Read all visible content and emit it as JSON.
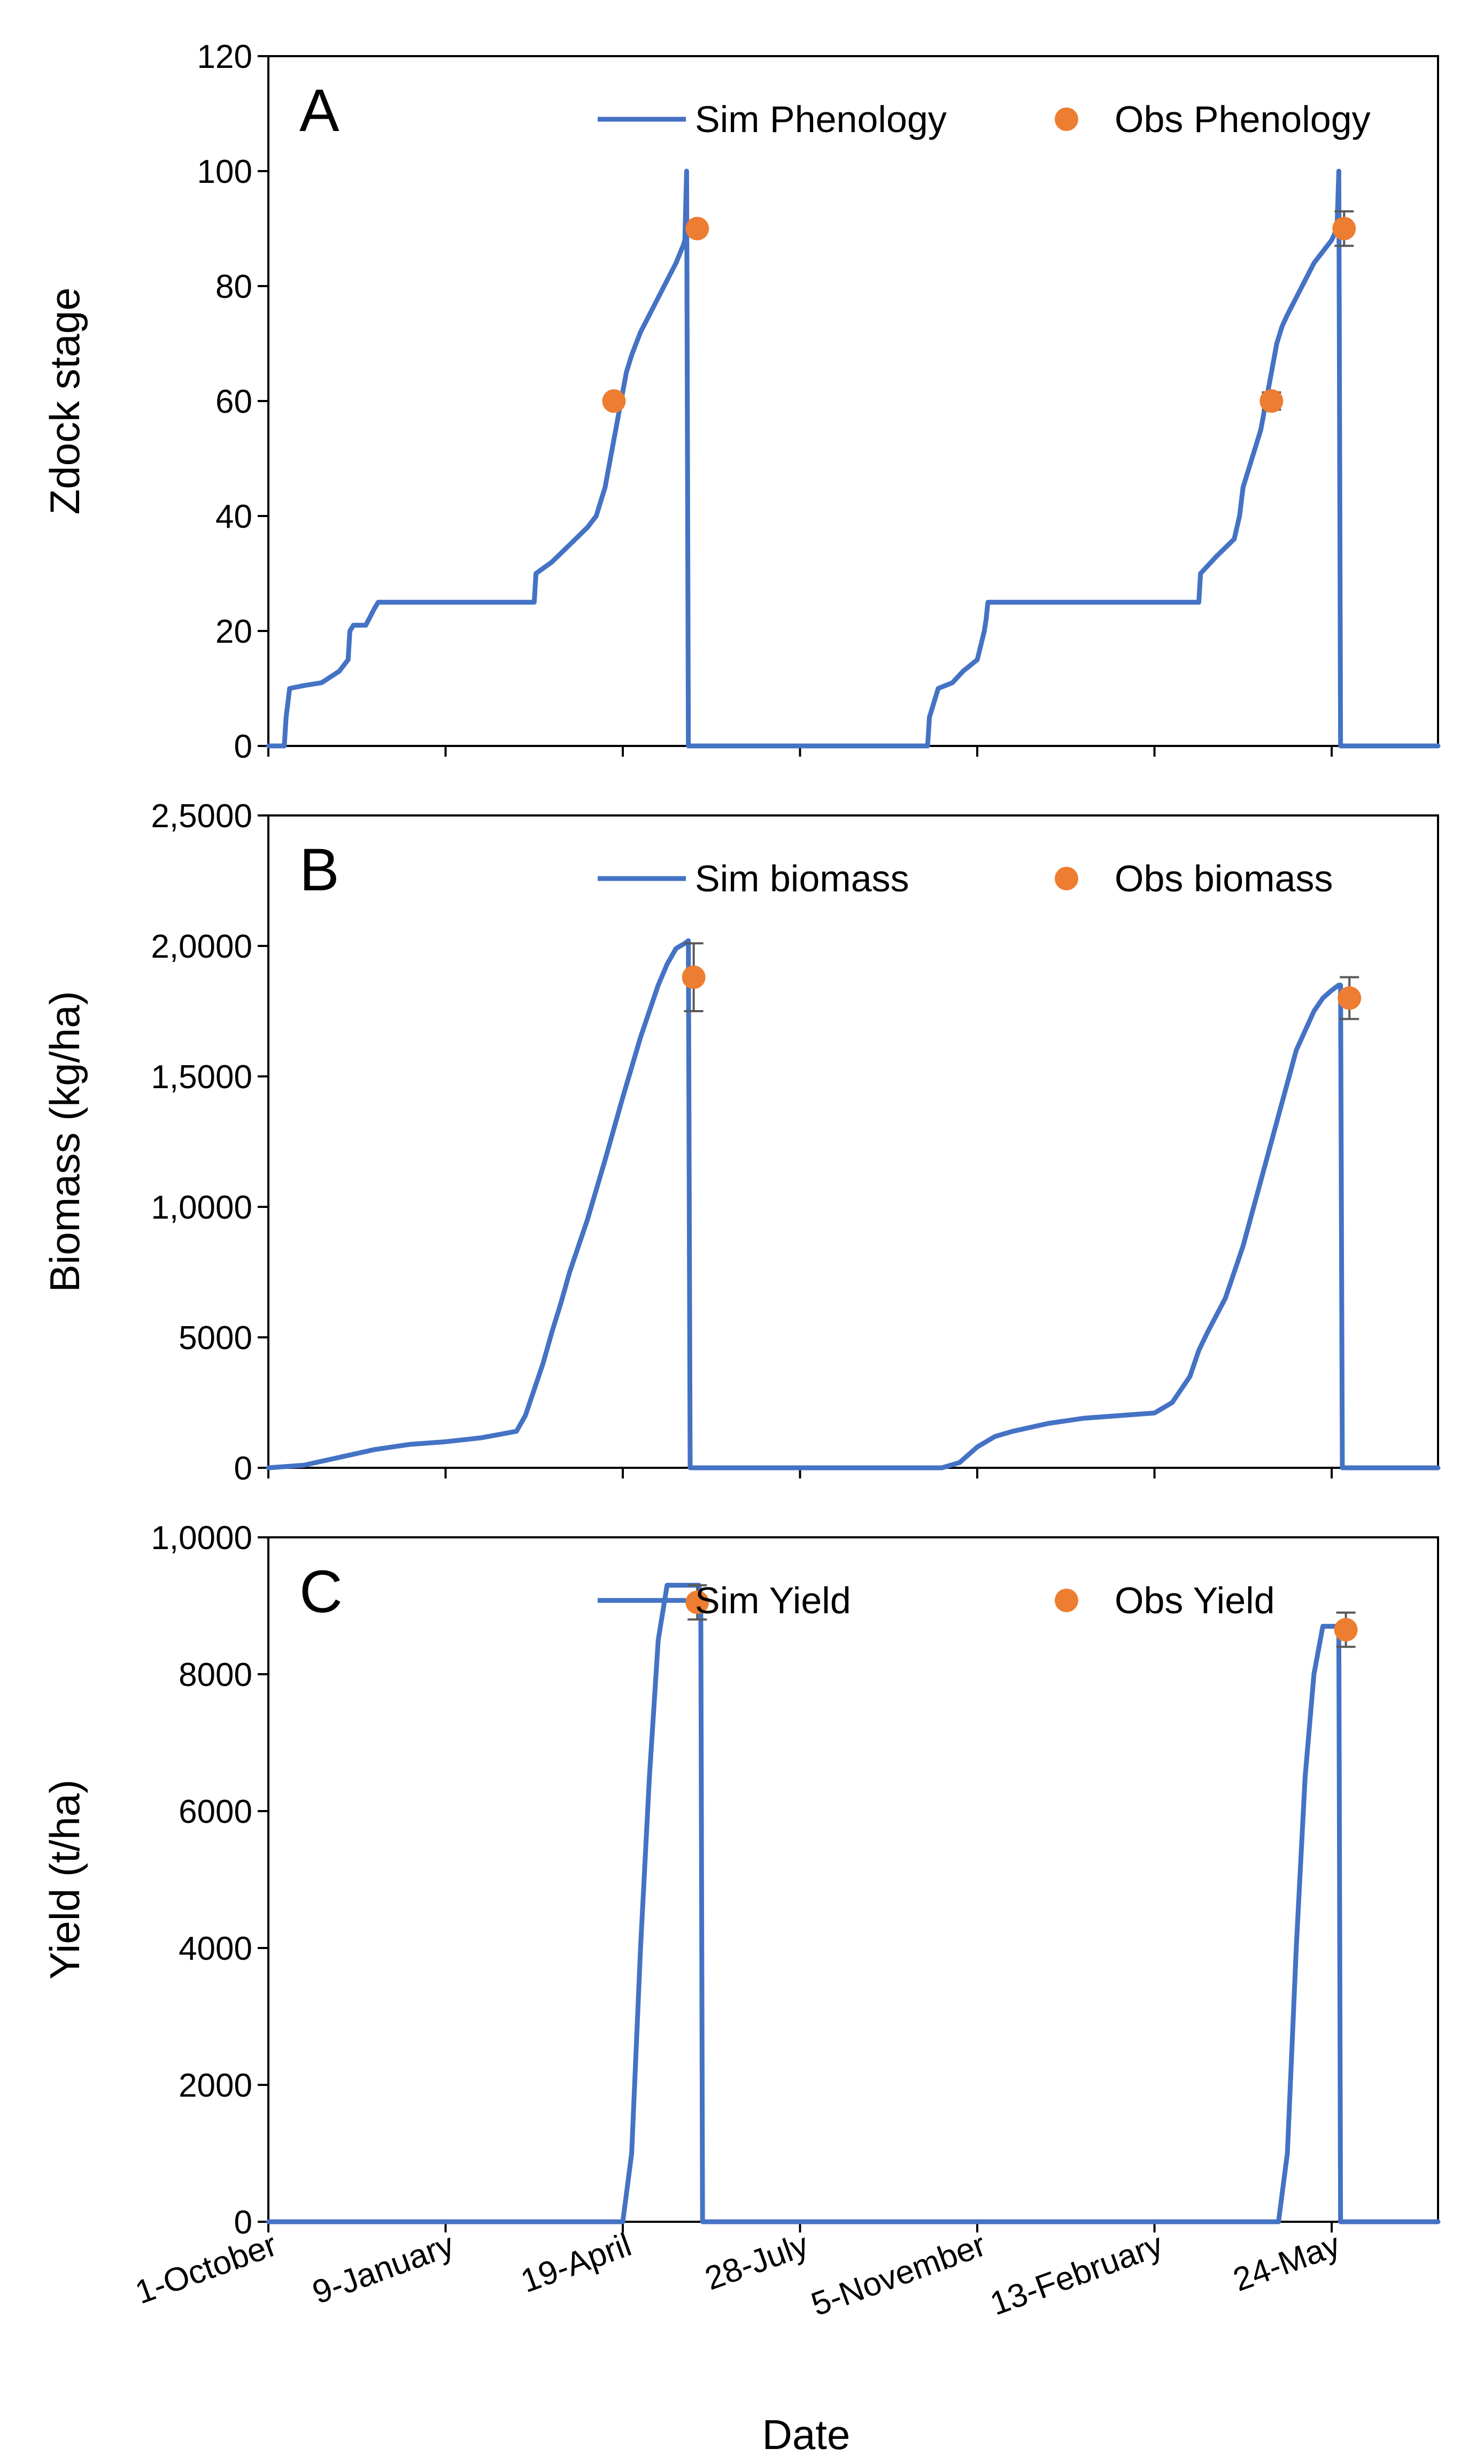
{
  "figure": {
    "xlabel": "Date"
  },
  "colors": {
    "sim": "#4472C4",
    "obs": "#ED7D31",
    "frame": "#000000",
    "error": "#595959"
  },
  "chart_data": [
    {
      "panel": "A",
      "type": "line",
      "ylabel": "Zdock stage",
      "ylim": [
        0,
        120
      ],
      "yticks": [
        0,
        20,
        40,
        60,
        80,
        100,
        120
      ],
      "ytick_labels": [
        "0",
        "20",
        "40",
        "60",
        "80",
        "100",
        "120"
      ],
      "xlim": [
        0,
        660
      ],
      "xtick_values": [
        0,
        100,
        200,
        300,
        400,
        500,
        600
      ],
      "xtick_labels": [
        "1-October",
        "9-January",
        "19-April",
        "28-July",
        "5-November",
        "13-February",
        "24-May"
      ],
      "legend": {
        "sim": "Sim Phenology",
        "obs": "Obs Phenology",
        "position": "top-right"
      },
      "series": [
        {
          "name": "Sim Phenology",
          "kind": "line",
          "x": [
            0,
            9,
            10,
            12,
            20,
            30,
            40,
            45,
            46,
            48,
            55,
            60,
            62,
            150,
            151,
            160,
            170,
            180,
            185,
            190,
            193,
            196,
            199,
            202,
            205,
            210,
            215,
            220,
            225,
            230,
            234,
            235,
            236,
            237,
            372,
            373,
            378,
            382,
            386,
            392,
            400,
            404,
            405,
            406,
            408,
            412,
            420,
            430,
            440,
            480,
            500,
            525,
            526,
            535,
            545,
            548,
            550,
            555,
            560,
            563,
            566,
            569,
            572,
            575,
            580,
            585,
            590,
            595,
            600,
            603,
            604,
            605,
            606,
            608,
            660
          ],
          "y": [
            0,
            0,
            5,
            10,
            10.5,
            11,
            13,
            15,
            20,
            21,
            21,
            24,
            25,
            25,
            30,
            32,
            35,
            38,
            40,
            45,
            50,
            55,
            60,
            65,
            68,
            72,
            75,
            78,
            81,
            84,
            87,
            88,
            100,
            0,
            0,
            5,
            10,
            10.5,
            11,
            13,
            15,
            20,
            22,
            25,
            25,
            25,
            25,
            25,
            25,
            25,
            25,
            25,
            30,
            33,
            36,
            40,
            45,
            50,
            55,
            60,
            65,
            70,
            73,
            75,
            78,
            81,
            84,
            86,
            88,
            90,
            100,
            0,
            0,
            0,
            0
          ]
        },
        {
          "name": "Obs Phenology",
          "kind": "points",
          "x": [
            195,
            242,
            566,
            607
          ],
          "y": [
            60,
            90,
            60,
            90
          ],
          "err": [
            0,
            0,
            1.5,
            3
          ]
        }
      ]
    },
    {
      "panel": "B",
      "type": "line",
      "ylabel": "Biomass (kg/ha)",
      "ylim": [
        0,
        25000
      ],
      "yticks": [
        0,
        5000,
        10000,
        15000,
        20000,
        25000
      ],
      "ytick_labels": [
        "0",
        "5000",
        "1,0000",
        "1,5000",
        "2,0000",
        "2,5000"
      ],
      "xlim": [
        0,
        660
      ],
      "xtick_values": [
        0,
        100,
        200,
        300,
        400,
        500,
        600
      ],
      "xtick_labels": [
        "1-October",
        "9-January",
        "19-April",
        "28-July",
        "5-November",
        "13-February",
        "24-May"
      ],
      "legend": {
        "sim": "Sim biomass",
        "obs": "Obs biomass",
        "position": "top-right"
      },
      "series": [
        {
          "name": "Sim biomass",
          "kind": "line",
          "x": [
            0,
            20,
            40,
            60,
            80,
            100,
            120,
            140,
            145,
            150,
            155,
            160,
            165,
            170,
            180,
            190,
            200,
            210,
            220,
            225,
            230,
            235,
            237,
            238,
            380,
            390,
            400,
            410,
            420,
            440,
            460,
            480,
            500,
            510,
            520,
            525,
            530,
            540,
            550,
            560,
            570,
            580,
            590,
            595,
            600,
            604,
            605,
            606,
            660
          ],
          "y": [
            0,
            100,
            400,
            700,
            900,
            1000,
            1150,
            1400,
            2000,
            3000,
            4000,
            5200,
            6300,
            7500,
            9500,
            11800,
            14200,
            16500,
            18500,
            19300,
            19900,
            20100,
            20200,
            0,
            0,
            200,
            800,
            1200,
            1400,
            1700,
            1900,
            2000,
            2100,
            2500,
            3500,
            4500,
            5200,
            6500,
            8500,
            11000,
            13500,
            16000,
            17500,
            18000,
            18300,
            18500,
            18500,
            0,
            0
          ]
        },
        {
          "name": "Obs biomass",
          "kind": "points",
          "x": [
            240,
            610
          ],
          "y": [
            18800,
            18000
          ],
          "err": [
            1300,
            800
          ]
        }
      ]
    },
    {
      "panel": "C",
      "type": "line",
      "ylabel": "Yield (t/ha)",
      "ylim": [
        0,
        10000
      ],
      "yticks": [
        0,
        2000,
        4000,
        6000,
        8000,
        10000
      ],
      "ytick_labels": [
        "0",
        "2000",
        "4000",
        "6000",
        "8000",
        "1,0000"
      ],
      "xlim": [
        0,
        660
      ],
      "xtick_values": [
        0,
        100,
        200,
        300,
        400,
        500,
        600
      ],
      "xtick_labels": [
        "1-October",
        "9-January",
        "19-April",
        "28-July",
        "5-November",
        "13-February",
        "24-May"
      ],
      "legend": {
        "sim": "Sim Yield",
        "obs": "Obs Yield",
        "position": "top-right"
      },
      "series": [
        {
          "name": "Sim Yield",
          "kind": "line",
          "x": [
            0,
            200,
            205,
            210,
            215,
            220,
            225,
            228,
            232,
            240,
            243,
            244,
            245,
            570,
            575,
            580,
            585,
            590,
            595,
            600,
            603,
            604,
            605,
            660
          ],
          "y": [
            0,
            0,
            1000,
            4000,
            6500,
            8500,
            9300,
            9300,
            9300,
            9300,
            9300,
            9000,
            0,
            0,
            1000,
            4000,
            6500,
            8000,
            8700,
            8700,
            8700,
            8650,
            0,
            0
          ]
        },
        {
          "name": "Obs Yield",
          "kind": "points",
          "x": [
            242,
            608
          ],
          "y": [
            9050,
            8650
          ],
          "err": [
            250,
            250
          ]
        }
      ]
    }
  ]
}
